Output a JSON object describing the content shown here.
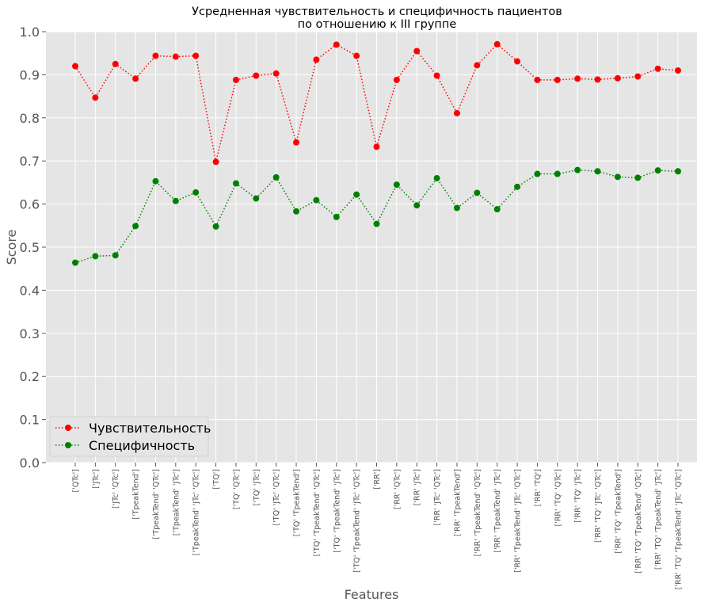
{
  "chart_data": {
    "type": "line",
    "title": "Усредненная чувствительность и специфичность пациентов\nпо отношению к III группе",
    "xlabel": "Features",
    "ylabel": "Score",
    "ylim": [
      0.0,
      1.0
    ],
    "yticks": [
      "0.0",
      "0.1",
      "0.2",
      "0.3",
      "0.4",
      "0.5",
      "0.6",
      "0.7",
      "0.8",
      "0.9",
      "1.0"
    ],
    "grid": true,
    "legend_position": "lower-left",
    "categories": [
      "['QTc']",
      "['JTc']",
      "['JTc' 'QTc']",
      "['TpeakTend']",
      "['TpeakTend' 'QTc']",
      "['TpeakTend' 'JTc']",
      "['TpeakTend' 'JTc' 'QTc']",
      "['TQ']",
      "['TQ' 'QTc']",
      "['TQ' 'JTc']",
      "['TQ' 'JTc' 'QTc']",
      "['TQ' 'TpeakTend']",
      "['TQ' 'TpeakTend' 'QTc']",
      "['TQ' 'TpeakTend' 'JTc']",
      "['TQ' 'TpeakTend' 'JTc' 'QTc']",
      "['RR']",
      "['RR' 'QTc']",
      "['RR' 'JTc']",
      "['RR' 'JTc' 'QTc']",
      "['RR' 'TpeakTend']",
      "['RR' 'TpeakTend' 'QTc']",
      "['RR' 'TpeakTend' 'JTc']",
      "['RR' 'TpeakTend' 'JTc' 'QTc']",
      "['RR' 'TQ']",
      "['RR' 'TQ' 'QTc']",
      "['RR' 'TQ' 'JTc']",
      "['RR' 'TQ' 'JTc' 'QTc']",
      "['RR' 'TQ' 'TpeakTend']",
      "['RR' 'TQ' 'TpeakTend' 'QTc']",
      "['RR' 'TQ' 'TpeakTend' 'JTc']",
      "['RR' 'TQ' 'TpeakTend' 'JTc' 'QTc']"
    ],
    "series": [
      {
        "name": "Чувствительность",
        "color": "#ff0000",
        "line_style": "dotted",
        "values": [
          0.92,
          0.847,
          0.925,
          0.891,
          0.944,
          0.942,
          0.944,
          0.698,
          0.888,
          0.898,
          0.903,
          0.743,
          0.935,
          0.97,
          0.944,
          0.733,
          0.888,
          0.955,
          0.898,
          0.811,
          0.922,
          0.971,
          0.931,
          0.888,
          0.888,
          0.891,
          0.889,
          0.892,
          0.896,
          0.914,
          0.91
        ]
      },
      {
        "name": "Специфичность",
        "color": "#008000",
        "line_style": "dotted",
        "values": [
          0.464,
          0.479,
          0.481,
          0.549,
          0.653,
          0.607,
          0.627,
          0.548,
          0.648,
          0.613,
          0.662,
          0.583,
          0.609,
          0.57,
          0.622,
          0.554,
          0.645,
          0.597,
          0.66,
          0.591,
          0.626,
          0.588,
          0.64,
          0.67,
          0.67,
          0.679,
          0.676,
          0.663,
          0.661,
          0.678,
          0.676
        ]
      }
    ],
    "colors": {
      "background": "#e5e5e5",
      "grid": "#ffffff"
    }
  }
}
